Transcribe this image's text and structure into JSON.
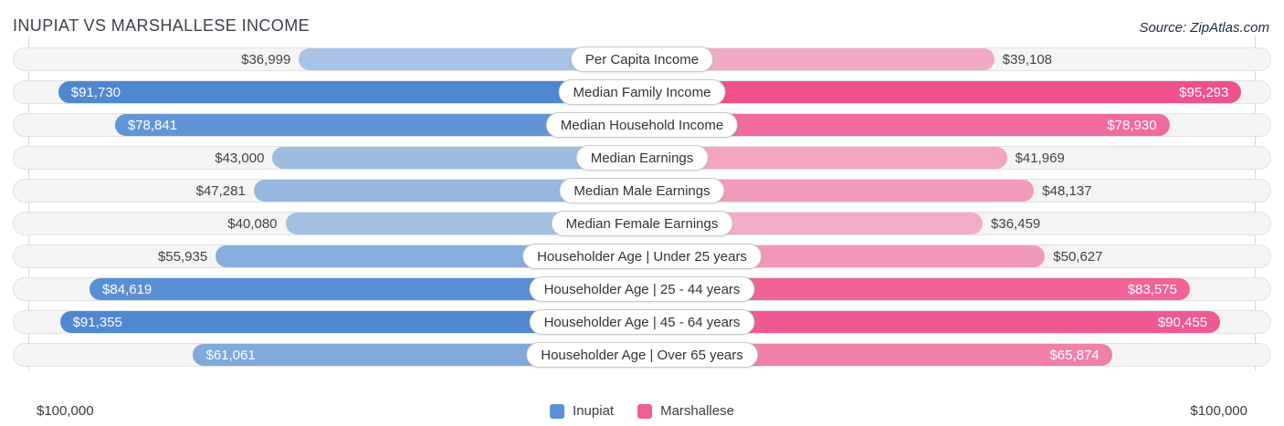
{
  "header": {
    "title": "INUPIAT VS MARSHALLESE INCOME",
    "source": "Source: ZipAtlas.com"
  },
  "colors": {
    "inupiat_base": "#3276cc",
    "marshallese_base": "#ee3d7f",
    "legend_inupiat": "#5b92d5",
    "legend_marshallese": "#ee5f95",
    "track_background": "#f4f4f5",
    "track_border": "#e2e2e5"
  },
  "axis": {
    "left_label": "$100,000",
    "right_label": "$100,000",
    "max_value": 100000
  },
  "legend": {
    "items": [
      {
        "label": "Inupiat"
      },
      {
        "label": "Marshallese"
      }
    ]
  },
  "chart_data": {
    "type": "bar",
    "orientation": "bidirectional-horizontal",
    "title": "INUPIAT VS MARSHALLESE INCOME",
    "xlim": [
      0,
      100000
    ],
    "legend_position": "bottom-center",
    "grid": "edge-ticks-at-100000",
    "series_names": [
      "Inupiat",
      "Marshallese"
    ],
    "categories": [
      "Per Capita Income",
      "Median Family Income",
      "Median Household Income",
      "Median Earnings",
      "Median Male Earnings",
      "Median Female Earnings",
      "Householder Age | Under 25 years",
      "Householder Age | 25 - 44 years",
      "Householder Age | 45 - 64 years",
      "Householder Age | Over 65 years"
    ],
    "rows": [
      {
        "label": "Per Capita Income",
        "inupiat": 36999,
        "inupiat_label": "$36,999",
        "marshallese": 39108,
        "marshallese_label": "$39,108"
      },
      {
        "label": "Median Family Income",
        "inupiat": 91730,
        "inupiat_label": "$91,730",
        "marshallese": 95293,
        "marshallese_label": "$95,293"
      },
      {
        "label": "Median Household Income",
        "inupiat": 78841,
        "inupiat_label": "$78,841",
        "marshallese": 78930,
        "marshallese_label": "$78,930"
      },
      {
        "label": "Median Earnings",
        "inupiat": 43000,
        "inupiat_label": "$43,000",
        "marshallese": 41969,
        "marshallese_label": "$41,969"
      },
      {
        "label": "Median Male Earnings",
        "inupiat": 47281,
        "inupiat_label": "$47,281",
        "marshallese": 48137,
        "marshallese_label": "$48,137"
      },
      {
        "label": "Median Female Earnings",
        "inupiat": 40080,
        "inupiat_label": "$40,080",
        "marshallese": 36459,
        "marshallese_label": "$36,459"
      },
      {
        "label": "Householder Age | Under 25 years",
        "inupiat": 55935,
        "inupiat_label": "$55,935",
        "marshallese": 50627,
        "marshallese_label": "$50,627"
      },
      {
        "label": "Householder Age | 25 - 44 years",
        "inupiat": 84619,
        "inupiat_label": "$84,619",
        "marshallese": 83575,
        "marshallese_label": "$83,575"
      },
      {
        "label": "Householder Age | 45 - 64 years",
        "inupiat": 91355,
        "inupiat_label": "$91,355",
        "marshallese": 90455,
        "marshallese_label": "$90,455"
      },
      {
        "label": "Householder Age | Over 65 years",
        "inupiat": 61061,
        "inupiat_label": "$61,061",
        "marshallese": 65874,
        "marshallese_label": "$65,874"
      }
    ]
  }
}
